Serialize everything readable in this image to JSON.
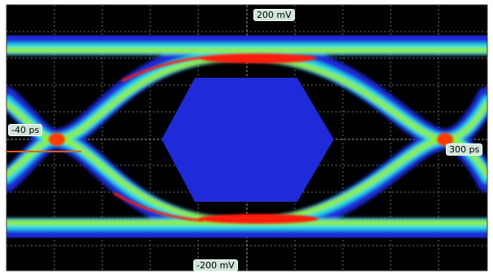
{
  "display": {
    "voltage_top": "200 mV",
    "voltage_bottom": "-200 mV",
    "time_left": "-40 ps",
    "time_right": "300 ps"
  },
  "colors": {
    "background": "#000000",
    "grid": "#6e6e6e",
    "density_low": "#1f2bd8",
    "density_mid": "#1ad3e8",
    "density_high": "#8ef02a",
    "density_peak": "#ff1c10",
    "crossing_hot": "#ff3b00",
    "cursor_line": "#e06010",
    "mask": "#1f2bd8",
    "label_bg": "#cfe6d8"
  }
}
